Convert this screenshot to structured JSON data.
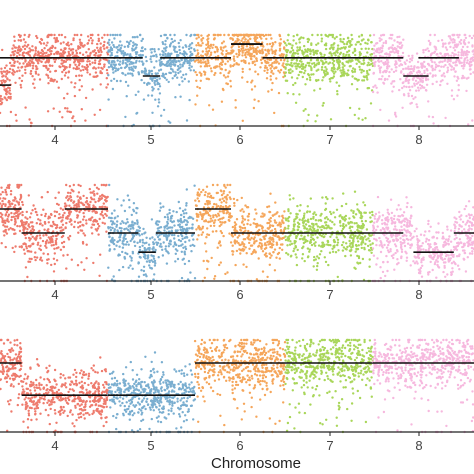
{
  "chart_data": [
    {
      "type": "scatter",
      "title": "",
      "xlabel": "",
      "ylabel": "",
      "x_ticks": [
        "4",
        "5",
        "6",
        "7",
        "8"
      ],
      "chromosomes": [
        {
          "label": "4",
          "color": "#ee7b6d",
          "segments": [
            [
              -0.6,
              0.3,
              0.25
            ],
            [
              0.3,
              1.0,
              0.25
            ],
            [
              -0.3,
              0.1,
              0.55
            ]
          ]
        },
        {
          "label": "5",
          "color": "#7aaed0",
          "segments": [
            [
              0.0,
              0.4,
              0.25
            ],
            [
              0.4,
              0.6,
              0.45
            ],
            [
              0.6,
              1.0,
              0.25
            ]
          ]
        },
        {
          "label": "6",
          "color": "#f5a65b",
          "segments": [
            [
              0.0,
              0.4,
              0.25
            ],
            [
              0.4,
              0.75,
              0.1
            ],
            [
              0.4,
              0.75,
              0.1
            ],
            [
              0.75,
              1.0,
              0.25
            ]
          ]
        },
        {
          "label": "7",
          "color": "#a9d65a",
          "segments": [
            [
              0.0,
              1.0,
              0.25
            ]
          ]
        },
        {
          "label": "8",
          "color": "#f6b8de",
          "segments": [
            [
              0.0,
              0.3,
              0.25
            ],
            [
              0.45,
              0.85,
              0.25
            ],
            [
              0.3,
              0.55,
              0.45
            ]
          ]
        }
      ]
    },
    {
      "type": "scatter",
      "title": "",
      "xlabel": "",
      "ylabel": "",
      "x_ticks": [
        "4",
        "5",
        "6",
        "7",
        "8"
      ],
      "chromosomes": [
        {
          "label": "4",
          "color": "#ee7b6d",
          "segments": [
            [
              -0.6,
              0.2,
              0.25
            ],
            [
              0.2,
              0.6,
              0.5
            ],
            [
              0.6,
              1.0,
              0.25
            ]
          ]
        },
        {
          "label": "5",
          "color": "#7aaed0",
          "segments": [
            [
              0.0,
              0.35,
              0.5
            ],
            [
              0.35,
              0.55,
              0.7
            ],
            [
              0.55,
              1.0,
              0.5
            ]
          ]
        },
        {
          "label": "6",
          "color": "#f5a65b",
          "segments": [
            [
              0.0,
              0.4,
              0.25
            ],
            [
              0.4,
              0.65,
              0.5
            ],
            [
              0.65,
              1.0,
              0.5
            ]
          ]
        },
        {
          "label": "7",
          "color": "#a9d65a",
          "segments": [
            [
              0.0,
              1.0,
              0.5
            ]
          ]
        },
        {
          "label": "8",
          "color": "#f6b8de",
          "segments": [
            [
              0.0,
              0.3,
              0.5
            ],
            [
              0.4,
              0.8,
              0.7
            ],
            [
              0.8,
              1.0,
              0.5
            ]
          ]
        }
      ]
    },
    {
      "type": "scatter",
      "title": "",
      "xlabel": "Chromosome",
      "ylabel": "",
      "x_ticks": [
        "4",
        "5",
        "6",
        "7",
        "8"
      ],
      "chromosomes": [
        {
          "label": "4",
          "color": "#ee7b6d",
          "segments": [
            [
              -0.6,
              0.2,
              0.25
            ],
            [
              0.2,
              1.0,
              0.6
            ]
          ]
        },
        {
          "label": "5",
          "color": "#7aaed0",
          "segments": [
            [
              0.0,
              1.0,
              0.6
            ]
          ]
        },
        {
          "label": "6",
          "color": "#f5a65b",
          "segments": [
            [
              0.0,
              1.0,
              0.25
            ]
          ]
        },
        {
          "label": "7",
          "color": "#a9d65a",
          "segments": [
            [
              0.0,
              1.0,
              0.25
            ]
          ]
        },
        {
          "label": "8",
          "color": "#f6b8de",
          "segments": [
            [
              0.0,
              1.0,
              0.25
            ]
          ]
        }
      ]
    }
  ]
}
